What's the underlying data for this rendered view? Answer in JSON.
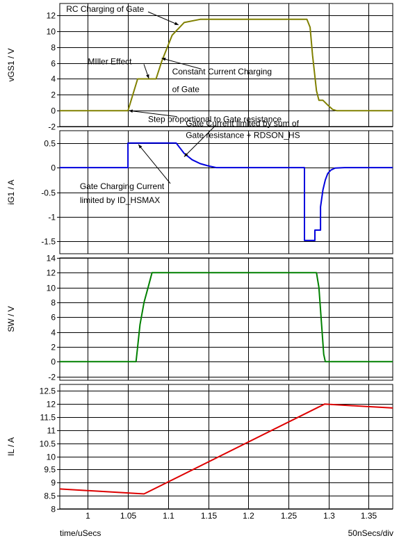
{
  "footer": {
    "time_label": "time/uSecs",
    "scale_label": "50nSecs/div"
  },
  "colors": {
    "vgs": "#808000",
    "ig": "#0000dd",
    "sw": "#008000",
    "il": "#dd0000",
    "grid": "#000000",
    "frame": "#000000"
  },
  "chart_data": [
    {
      "type": "line",
      "ylabel": "vGS1 / V",
      "xlim": [
        0.965,
        1.38
      ],
      "ylim": [
        -2,
        13.5
      ],
      "yticks": [
        -2,
        0,
        2,
        4,
        6,
        8,
        10,
        12
      ],
      "ytick_labels": [
        "-2",
        "0",
        "2",
        "4",
        "6",
        "8",
        "10",
        "12"
      ],
      "color": "vgs",
      "series": [
        {
          "x": [
            0.965,
            1.05,
            1.062,
            1.068,
            1.085,
            1.092,
            1.105,
            1.12,
            1.14,
            1.16,
            1.273,
            1.277,
            1.28,
            1.285,
            1.288,
            1.293,
            1.3,
            1.305,
            1.31,
            1.38
          ],
          "y": [
            0,
            0,
            4,
            4,
            4,
            6.2,
            9.5,
            11.1,
            11.5,
            11.5,
            11.5,
            10.5,
            7.0,
            2.5,
            1.3,
            1.3,
            0.6,
            0.15,
            0,
            0
          ]
        }
      ],
      "annotations": [
        {
          "text": "RC Charging of Gate",
          "ax": 0.973,
          "ay": 12.8,
          "x": 1.113,
          "y": 10.8
        },
        {
          "text": "MIller Effect",
          "ax": 1.0,
          "ay": 6.2,
          "x": 1.076,
          "y": 4.05
        },
        {
          "text": "Constant Current Charging",
          "ax": 1.105,
          "ay": 4.9,
          "x": 1.092,
          "y": 6.6
        },
        {
          "text": "of Gate",
          "ax": 1.105,
          "ay": 2.7
        },
        {
          "text": "Step proportional to Gate resistance",
          "ax": 1.075,
          "ay": -1.1,
          "x": 1.051,
          "y": 0
        }
      ]
    },
    {
      "type": "line",
      "ylabel": "iG1 / A",
      "xlim": [
        0.965,
        1.38
      ],
      "ylim": [
        -1.75,
        0.75
      ],
      "yticks": [
        -1.5,
        -1,
        -0.5,
        0,
        0.5
      ],
      "ytick_labels": [
        "-1.5",
        "-1",
        "-0.5",
        "0",
        "0.5"
      ],
      "color": "ig",
      "series": [
        {
          "x": [
            0.965,
            1.05,
            1.05,
            1.11,
            1.12,
            1.13,
            1.14,
            1.15,
            1.16,
            1.27,
            1.27,
            1.283,
            1.283,
            1.29,
            1.29,
            1.293,
            1.296,
            1.299,
            1.303,
            1.308,
            1.32,
            1.38
          ],
          "y": [
            0,
            0,
            0.5,
            0.5,
            0.29,
            0.16,
            0.08,
            0.035,
            0,
            0,
            -1.48,
            -1.48,
            -1.27,
            -1.27,
            -0.8,
            -0.45,
            -0.25,
            -0.12,
            -0.05,
            -0.01,
            0,
            0
          ]
        }
      ],
      "annotations": [
        {
          "text": "Gate Current limited by sum of",
          "ax": 1.122,
          "ay": 0.9,
          "x": 1.12,
          "y": 0.22
        },
        {
          "text": "Gate resistance + RDSON_HS",
          "ax": 1.122,
          "ay": 0.66
        },
        {
          "text": "Gate Charging Current",
          "ax": 0.99,
          "ay": -0.38,
          "x": 1.063,
          "y": 0.47
        },
        {
          "text": "limited by ID_HSMAX",
          "ax": 0.99,
          "ay": -0.66
        }
      ]
    },
    {
      "type": "line",
      "ylabel": "SW / V",
      "xlim": [
        0.965,
        1.38
      ],
      "ylim": [
        -2.5,
        14
      ],
      "yticks": [
        -2,
        0,
        2,
        4,
        6,
        8,
        10,
        12,
        14
      ],
      "ytick_labels": [
        "-2",
        "0",
        "2",
        "4",
        "6",
        "8",
        "10",
        "12",
        "14"
      ],
      "color": "sw",
      "series": [
        {
          "x": [
            0.965,
            1.06,
            1.062,
            1.065,
            1.07,
            1.075,
            1.08,
            1.285,
            1.288,
            1.29,
            1.292,
            1.294,
            1.296,
            1.38
          ],
          "y": [
            0,
            0,
            2.0,
            5.0,
            8.0,
            10.0,
            12,
            12,
            10.0,
            7.0,
            4.0,
            1.0,
            0,
            0
          ]
        }
      ],
      "annotations": []
    },
    {
      "type": "line",
      "ylabel": "IL / A",
      "xlim": [
        0.965,
        1.38
      ],
      "ylim": [
        8,
        12.75
      ],
      "yticks": [
        8,
        8.5,
        9,
        9.5,
        10,
        10.5,
        11,
        11.5,
        12,
        12.5
      ],
      "ytick_labels": [
        "8",
        "8.5",
        "9",
        "9.5",
        "10",
        "10.5",
        "11",
        "11.5",
        "12",
        "12.5"
      ],
      "xticks": [
        1,
        1.05,
        1.1,
        1.15,
        1.2,
        1.25,
        1.3,
        1.35
      ],
      "xtick_labels": [
        "1",
        "1.05",
        "1.1",
        "1.15",
        "1.2",
        "1.25",
        "1.3",
        "1.35"
      ],
      "color": "il",
      "series": [
        {
          "x": [
            0.965,
            1.07,
            1.295,
            1.38
          ],
          "y": [
            8.76,
            8.57,
            12.0,
            11.85
          ]
        }
      ],
      "annotations": []
    }
  ]
}
